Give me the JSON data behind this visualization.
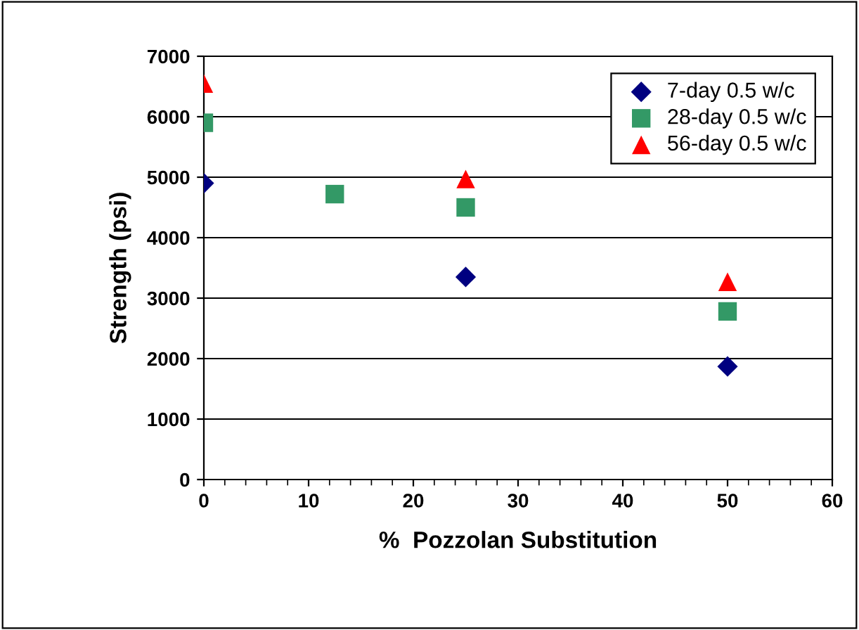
{
  "chart_data": {
    "type": "scatter",
    "xlabel": "%  Pozzolan Substitution",
    "ylabel": "Strength (psi)",
    "series": [
      {
        "name": "7-day 0.5 w/c",
        "color": "#000080",
        "marker": "diamond",
        "x": [
          0,
          25,
          50
        ],
        "values": [
          4900,
          3350,
          1870
        ]
      },
      {
        "name": "28-day 0.5 w/c",
        "color": "#339966",
        "marker": "square",
        "x": [
          0,
          12.5,
          25,
          50
        ],
        "values": [
          5900,
          4720,
          4500,
          2780
        ]
      },
      {
        "name": "56-day 0.5 w/c",
        "color": "#ff0000",
        "marker": "triangle",
        "x": [
          0,
          25,
          50
        ],
        "values": [
          6550,
          4970,
          3270
        ]
      }
    ],
    "xlim": [
      0,
      60
    ],
    "xticks": [
      0,
      10,
      20,
      30,
      40,
      50,
      60
    ],
    "ylim": [
      0,
      7000
    ],
    "yticks": [
      0,
      1000,
      2000,
      3000,
      4000,
      5000,
      6000,
      7000
    ],
    "grid": "y",
    "legend": "top right"
  }
}
